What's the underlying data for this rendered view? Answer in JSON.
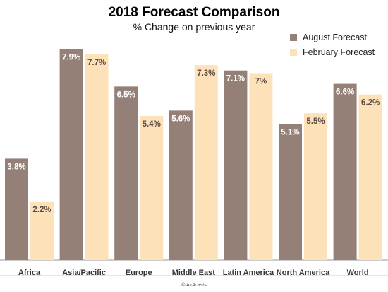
{
  "chart_data": {
    "type": "bar",
    "title": "2018 Forecast Comparison",
    "subtitle": "% Change on previous year",
    "categories": [
      "Africa",
      "Asia/Pacific",
      "Europe",
      "Middle East",
      "Latin America",
      "North America",
      "World"
    ],
    "series": [
      {
        "name": "August Forecast",
        "color": "#958077",
        "values": [
          3.8,
          7.9,
          6.5,
          5.6,
          7.1,
          5.1,
          6.6
        ],
        "labels": [
          "3.8%",
          "7.9%",
          "6.5%",
          "5.6%",
          "7.1%",
          "5.1%",
          "6.6%"
        ]
      },
      {
        "name": "February Forecast",
        "color": "#fde2b9",
        "values": [
          2.2,
          7.7,
          5.4,
          7.3,
          7.0,
          5.5,
          6.2
        ],
        "labels": [
          "2.2%",
          "7.7%",
          "5.4%",
          "7.3%",
          "7%",
          "5.5%",
          "6.2%"
        ]
      }
    ],
    "ylim": [
      0,
      8.6
    ],
    "grid": false,
    "legend_position": "top-right",
    "xlabel": "",
    "ylabel": ""
  },
  "credit": "© Air4casts"
}
